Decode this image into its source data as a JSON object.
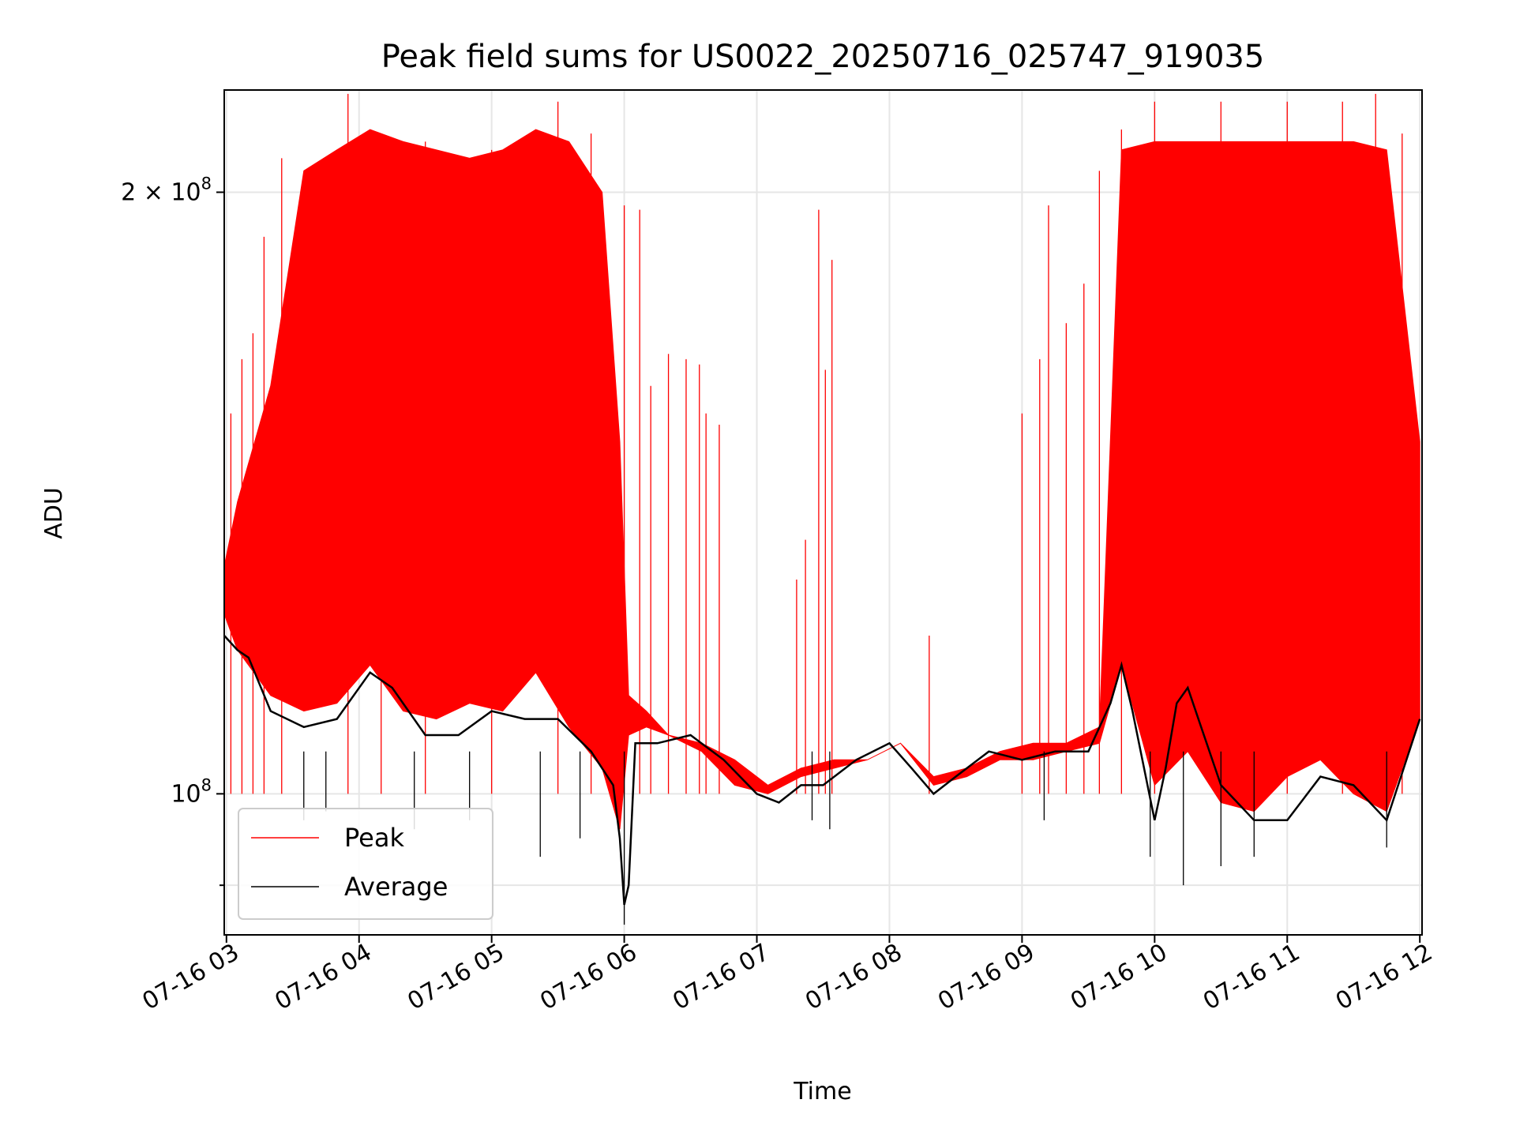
{
  "chart_data": {
    "type": "line",
    "title": "Peak field sums for US0022_20250716_025747_919035",
    "xlabel": "Time",
    "ylabel": "ADU",
    "x_range": [
      "2025-07-16 02:59",
      "2025-07-16 12:01"
    ],
    "ylim": [
      85000000,
      225000000
    ],
    "y_scale": "log",
    "grid": true,
    "legend_position": "lower-left",
    "x_ticks": [
      {
        "label": "07-16 03",
        "value": "2025-07-16 03:00"
      },
      {
        "label": "07-16 04",
        "value": "2025-07-16 04:00"
      },
      {
        "label": "07-16 05",
        "value": "2025-07-16 05:00"
      },
      {
        "label": "07-16 06",
        "value": "2025-07-16 06:00"
      },
      {
        "label": "07-16 07",
        "value": "2025-07-16 07:00"
      },
      {
        "label": "07-16 08",
        "value": "2025-07-16 08:00"
      },
      {
        "label": "07-16 09",
        "value": "2025-07-16 09:00"
      },
      {
        "label": "07-16 10",
        "value": "2025-07-16 10:00"
      },
      {
        "label": "07-16 11",
        "value": "2025-07-16 11:00"
      },
      {
        "label": "07-16 12",
        "value": "2025-07-16 12:00"
      }
    ],
    "y_ticks": [
      {
        "value": 100000000,
        "mantissa": "",
        "base": "10",
        "exp": "8"
      },
      {
        "value": 200000000,
        "mantissa": "2 × ",
        "base": "10",
        "exp": "8"
      }
    ],
    "y_minor_ticks": [
      90000000
    ],
    "series": [
      {
        "name": "Peak",
        "color": "#ff0000",
        "envelope": {
          "x": [
            "2025-07-16 02:59",
            "2025-07-16 03:05",
            "2025-07-16 03:20",
            "2025-07-16 03:35",
            "2025-07-16 03:50",
            "2025-07-16 04:05",
            "2025-07-16 04:20",
            "2025-07-16 04:35",
            "2025-07-16 04:50",
            "2025-07-16 05:05",
            "2025-07-16 05:20",
            "2025-07-16 05:35",
            "2025-07-16 05:50",
            "2025-07-16 05:58",
            "2025-07-16 06:02",
            "2025-07-16 06:10",
            "2025-07-16 06:20",
            "2025-07-16 06:35",
            "2025-07-16 06:50",
            "2025-07-16 07:05",
            "2025-07-16 07:20",
            "2025-07-16 07:35",
            "2025-07-16 07:50",
            "2025-07-16 08:05",
            "2025-07-16 08:20",
            "2025-07-16 08:35",
            "2025-07-16 08:50",
            "2025-07-16 09:05",
            "2025-07-16 09:20",
            "2025-07-16 09:35",
            "2025-07-16 09:45",
            "2025-07-16 10:00",
            "2025-07-16 10:15",
            "2025-07-16 10:30",
            "2025-07-16 10:45",
            "2025-07-16 11:00",
            "2025-07-16 11:15",
            "2025-07-16 11:30",
            "2025-07-16 11:45",
            "2025-07-16 12:00"
          ],
          "upper": [
            130000000,
            140000000,
            160000000,
            205000000,
            210000000,
            215000000,
            212000000,
            210000000,
            208000000,
            210000000,
            215000000,
            212000000,
            200000000,
            150000000,
            112000000,
            110000000,
            107000000,
            106000000,
            104000000,
            101000000,
            103000000,
            104000000,
            104000000,
            106000000,
            102000000,
            103000000,
            105000000,
            106000000,
            106000000,
            108000000,
            210000000,
            212000000,
            212000000,
            212000000,
            212000000,
            212000000,
            212000000,
            212000000,
            210000000,
            150000000
          ],
          "lower": [
            123000000,
            118000000,
            112000000,
            110000000,
            111000000,
            116000000,
            110000000,
            109000000,
            111000000,
            110000000,
            115000000,
            108000000,
            103000000,
            96000000,
            107000000,
            108000000,
            107000000,
            105000000,
            101000000,
            100000000,
            102000000,
            103000000,
            104000000,
            106000000,
            101000000,
            102000000,
            104000000,
            104000000,
            105000000,
            106000000,
            116000000,
            101000000,
            105000000,
            99000000,
            98000000,
            102000000,
            104000000,
            100000000,
            98000000,
            109000000
          ]
        },
        "spikes": [
          {
            "x": "2025-07-16 03:02",
            "y": 155000000
          },
          {
            "x": "2025-07-16 03:07",
            "y": 165000000
          },
          {
            "x": "2025-07-16 03:12",
            "y": 170000000
          },
          {
            "x": "2025-07-16 03:17",
            "y": 190000000
          },
          {
            "x": "2025-07-16 03:25",
            "y": 208000000
          },
          {
            "x": "2025-07-16 03:55",
            "y": 224000000
          },
          {
            "x": "2025-07-16 04:10",
            "y": 214000000
          },
          {
            "x": "2025-07-16 04:30",
            "y": 212000000
          },
          {
            "x": "2025-07-16 05:00",
            "y": 210000000
          },
          {
            "x": "2025-07-16 05:30",
            "y": 222000000
          },
          {
            "x": "2025-07-16 05:45",
            "y": 214000000
          },
          {
            "x": "2025-07-16 06:00",
            "y": 197000000
          },
          {
            "x": "2025-07-16 06:07",
            "y": 196000000
          },
          {
            "x": "2025-07-16 06:12",
            "y": 160000000
          },
          {
            "x": "2025-07-16 06:20",
            "y": 166000000
          },
          {
            "x": "2025-07-16 06:28",
            "y": 165000000
          },
          {
            "x": "2025-07-16 06:34",
            "y": 164000000
          },
          {
            "x": "2025-07-16 06:37",
            "y": 155000000
          },
          {
            "x": "2025-07-16 06:43",
            "y": 153000000
          },
          {
            "x": "2025-07-16 07:18",
            "y": 128000000
          },
          {
            "x": "2025-07-16 07:22",
            "y": 134000000
          },
          {
            "x": "2025-07-16 07:28",
            "y": 196000000
          },
          {
            "x": "2025-07-16 07:31",
            "y": 163000000
          },
          {
            "x": "2025-07-16 07:34",
            "y": 185000000
          },
          {
            "x": "2025-07-16 08:18",
            "y": 120000000
          },
          {
            "x": "2025-07-16 09:00",
            "y": 155000000
          },
          {
            "x": "2025-07-16 09:08",
            "y": 165000000
          },
          {
            "x": "2025-07-16 09:12",
            "y": 197000000
          },
          {
            "x": "2025-07-16 09:20",
            "y": 172000000
          },
          {
            "x": "2025-07-16 09:28",
            "y": 180000000
          },
          {
            "x": "2025-07-16 09:35",
            "y": 205000000
          },
          {
            "x": "2025-07-16 09:45",
            "y": 215000000
          },
          {
            "x": "2025-07-16 10:00",
            "y": 222000000
          },
          {
            "x": "2025-07-16 10:30",
            "y": 222000000
          },
          {
            "x": "2025-07-16 11:00",
            "y": 222000000
          },
          {
            "x": "2025-07-16 11:25",
            "y": 222000000
          },
          {
            "x": "2025-07-16 11:40",
            "y": 224000000
          },
          {
            "x": "2025-07-16 11:52",
            "y": 214000000
          }
        ]
      },
      {
        "name": "Average",
        "color": "#000000",
        "x": [
          "2025-07-16 02:59",
          "2025-07-16 03:05",
          "2025-07-16 03:10",
          "2025-07-16 03:20",
          "2025-07-16 03:35",
          "2025-07-16 03:50",
          "2025-07-16 04:05",
          "2025-07-16 04:15",
          "2025-07-16 04:30",
          "2025-07-16 04:45",
          "2025-07-16 05:00",
          "2025-07-16 05:15",
          "2025-07-16 05:30",
          "2025-07-16 05:45",
          "2025-07-16 05:55",
          "2025-07-16 05:58",
          "2025-07-16 06:00",
          "2025-07-16 06:02",
          "2025-07-16 06:05",
          "2025-07-16 06:15",
          "2025-07-16 06:30",
          "2025-07-16 06:45",
          "2025-07-16 07:00",
          "2025-07-16 07:10",
          "2025-07-16 07:20",
          "2025-07-16 07:30",
          "2025-07-16 07:45",
          "2025-07-16 08:00",
          "2025-07-16 08:10",
          "2025-07-16 08:20",
          "2025-07-16 08:30",
          "2025-07-16 08:45",
          "2025-07-16 09:00",
          "2025-07-16 09:15",
          "2025-07-16 09:30",
          "2025-07-16 09:40",
          "2025-07-16 09:45",
          "2025-07-16 09:50",
          "2025-07-16 10:00",
          "2025-07-16 10:05",
          "2025-07-16 10:10",
          "2025-07-16 10:15",
          "2025-07-16 10:30",
          "2025-07-16 10:45",
          "2025-07-16 11:00",
          "2025-07-16 11:15",
          "2025-07-16 11:30",
          "2025-07-16 11:45",
          "2025-07-16 12:00"
        ],
        "y": [
          120000000,
          118000000,
          117000000,
          110000000,
          108000000,
          109000000,
          115000000,
          113000000,
          107000000,
          107000000,
          110000000,
          109000000,
          109000000,
          105000000,
          101000000,
          95000000,
          88000000,
          90000000,
          106000000,
          106000000,
          107000000,
          104000000,
          100000000,
          99000000,
          101000000,
          101000000,
          104000000,
          106000000,
          103000000,
          100000000,
          102000000,
          105000000,
          104000000,
          105000000,
          105000000,
          111000000,
          116000000,
          110000000,
          97000000,
          103000000,
          111000000,
          113000000,
          101000000,
          97000000,
          97000000,
          102000000,
          101000000,
          97000000,
          109000000
        ],
        "dips": [
          {
            "x": "2025-07-16 03:35",
            "y": 97000000
          },
          {
            "x": "2025-07-16 03:45",
            "y": 98000000
          },
          {
            "x": "2025-07-16 04:25",
            "y": 96000000
          },
          {
            "x": "2025-07-16 04:50",
            "y": 97000000
          },
          {
            "x": "2025-07-16 05:22",
            "y": 93000000
          },
          {
            "x": "2025-07-16 05:40",
            "y": 95000000
          },
          {
            "x": "2025-07-16 06:00",
            "y": 86000000
          },
          {
            "x": "2025-07-16 07:25",
            "y": 97000000
          },
          {
            "x": "2025-07-16 07:33",
            "y": 96000000
          },
          {
            "x": "2025-07-16 09:10",
            "y": 97000000
          },
          {
            "x": "2025-07-16 09:58",
            "y": 93000000
          },
          {
            "x": "2025-07-16 10:13",
            "y": 90000000
          },
          {
            "x": "2025-07-16 10:30",
            "y": 92000000
          },
          {
            "x": "2025-07-16 10:45",
            "y": 93000000
          },
          {
            "x": "2025-07-16 11:45",
            "y": 94000000
          }
        ]
      }
    ]
  }
}
